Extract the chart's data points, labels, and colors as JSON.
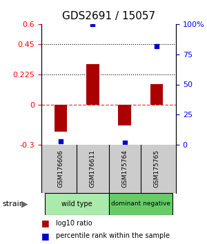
{
  "title": "GDS2691 / 15057",
  "samples": [
    "GSM176606",
    "GSM176611",
    "GSM175764",
    "GSM175765"
  ],
  "log10_ratio": [
    -0.2,
    0.3,
    -0.155,
    0.155
  ],
  "percentile_rank": [
    3.0,
    100.0,
    2.0,
    82.0
  ],
  "ylim_left": [
    -0.3,
    0.6
  ],
  "ylim_right": [
    0,
    100
  ],
  "yticks_left": [
    -0.3,
    0,
    0.225,
    0.45,
    0.6
  ],
  "yticks_right": [
    0,
    25,
    50,
    75,
    100
  ],
  "ytick_labels_left": [
    "-0.3",
    "0",
    "0.225",
    "0.45",
    "0.6"
  ],
  "ytick_labels_right": [
    "0",
    "25",
    "50",
    "75",
    "100%"
  ],
  "dotted_lines": [
    0.225,
    0.45
  ],
  "dashed_line": 0,
  "bar_color": "#aa0000",
  "point_color": "#0000cc",
  "bar_width": 0.4,
  "strain_groups": [
    {
      "label": "wild type",
      "samples": [
        0,
        1
      ],
      "color": "#aaeaaa"
    },
    {
      "label": "dominant negative",
      "samples": [
        2,
        3
      ],
      "color": "#66cc66"
    }
  ],
  "legend_bar_label": "log10 ratio",
  "legend_point_label": "percentile rank within the sample",
  "strain_label": "strain",
  "title_fontsize": 11,
  "tick_fontsize": 8,
  "sample_label_fontsize": 6.5,
  "legend_fontsize": 7,
  "background_color": "#ffffff",
  "label_bg_color": "#cccccc"
}
